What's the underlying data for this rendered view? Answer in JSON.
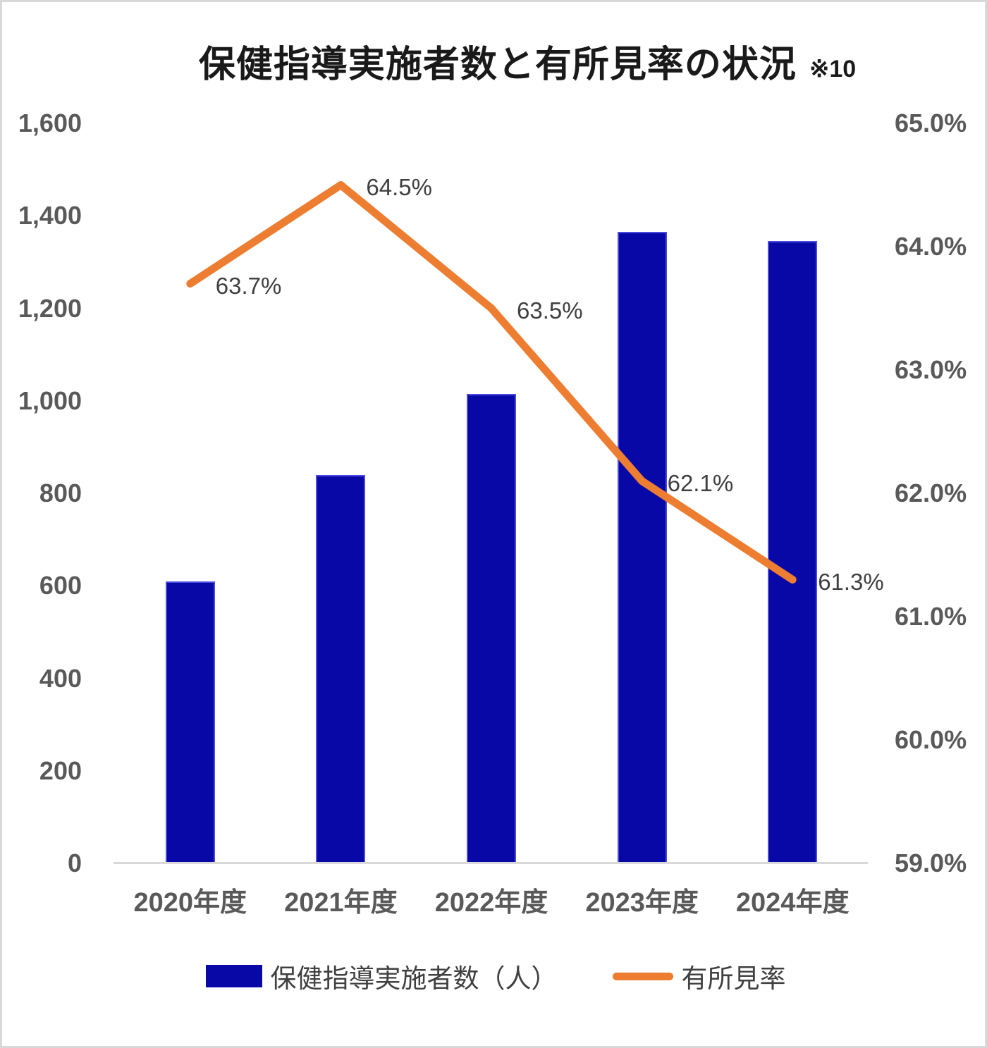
{
  "title": {
    "text": "保健指導実施者数と有所見率の状況",
    "note": "※10"
  },
  "chart_data": {
    "type": "combo_bar_line",
    "title": "保健指導実施者数と有所見率の状況 ※10",
    "categories": [
      "2020年度",
      "2021年度",
      "2022年度",
      "2023年度",
      "2024年度"
    ],
    "series": [
      {
        "name": "保健指導実施者数（人）",
        "type": "bar",
        "axis": "left",
        "values": [
          610,
          840,
          1015,
          1365,
          1345
        ]
      },
      {
        "name": "有所見率",
        "type": "line",
        "axis": "right",
        "values": [
          63.7,
          64.5,
          63.5,
          62.1,
          61.3
        ],
        "point_labels": [
          "63.7%",
          "64.5%",
          "63.5%",
          "62.1%",
          "61.3%"
        ]
      }
    ],
    "left_axis": {
      "min": 0,
      "max": 1600,
      "step": 200,
      "tick_labels": [
        "0",
        "200",
        "400",
        "600",
        "800",
        "1,000",
        "1,200",
        "1,400",
        "1,600"
      ]
    },
    "right_axis": {
      "min": 59.0,
      "max": 65.0,
      "step": 1.0,
      "tick_labels": [
        "59.0%",
        "60.0%",
        "61.0%",
        "62.0%",
        "63.0%",
        "64.0%",
        "65.0%"
      ]
    },
    "grid": false,
    "legend_position": "bottom",
    "colors": {
      "bar_fill": "#0808a6",
      "bar_border": "#4a4ae0",
      "line": "#ed7d31",
      "axis_text": "#595959",
      "data_label_text": "#404040",
      "title_text": "#1a1a1a",
      "baseline": "#d9d9d9"
    }
  },
  "legend": {
    "items": [
      {
        "label": "保健指導実施者数（人）",
        "swatch": "bar"
      },
      {
        "label": "有所見率",
        "swatch": "line"
      }
    ]
  }
}
